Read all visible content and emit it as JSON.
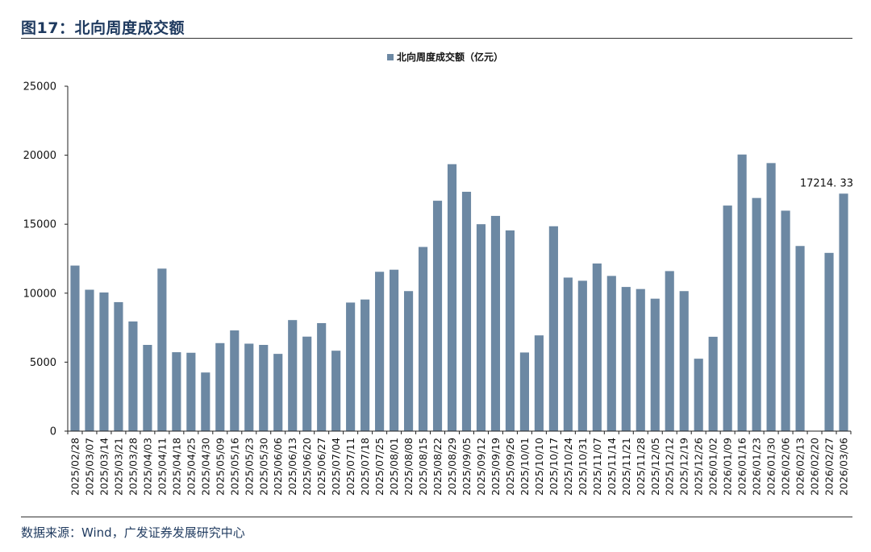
{
  "figure_title": "图17：北向周度成交额",
  "source": "数据来源：Wind，广发证券发展研究中心",
  "colors": {
    "bar": "#6c88a3",
    "axis": "#222222"
  },
  "chart_data": {
    "type": "bar",
    "title": "",
    "xlabel": "",
    "ylabel": "",
    "ylim": [
      0,
      25000
    ],
    "yticks": [
      0,
      5000,
      10000,
      15000,
      20000,
      25000
    ],
    "grid": false,
    "legend_position": "top-center",
    "categories": [
      "2025/02/28",
      "2025/03/07",
      "2025/03/14",
      "2025/03/21",
      "2025/03/28",
      "2025/04/03",
      "2025/04/11",
      "2025/04/18",
      "2025/04/25",
      "2025/04/30",
      "2025/05/09",
      "2025/05/16",
      "2025/05/23",
      "2025/05/30",
      "2025/06/06",
      "2025/06/13",
      "2025/06/20",
      "2025/06/27",
      "2025/07/04",
      "2025/07/11",
      "2025/07/18",
      "2025/07/25",
      "2025/08/01",
      "2025/08/08",
      "2025/08/15",
      "2025/08/22",
      "2025/08/29",
      "2025/09/05",
      "2025/09/12",
      "2025/09/19",
      "2025/09/26",
      "2025/10/01",
      "2025/10/10",
      "2025/10/17",
      "2025/10/24",
      "2025/10/31",
      "2025/11/07",
      "2025/11/14",
      "2025/11/21",
      "2025/11/28",
      "2025/12/05",
      "2025/12/12",
      "2025/12/19",
      "2025/12/26",
      "2026/01/02",
      "2026/01/09",
      "2026/01/16",
      "2026/01/23",
      "2026/01/30",
      "2026/02/06",
      "2026/02/13",
      "2026/02/20",
      "2026/02/27",
      "2026/03/06"
    ],
    "series": [
      {
        "name": "北向周度成交额（亿元）",
        "values": [
          12000,
          10250,
          10050,
          9350,
          7950,
          6250,
          11780,
          5720,
          5680,
          4250,
          6380,
          7300,
          6340,
          6250,
          5600,
          8050,
          6850,
          7830,
          5830,
          9320,
          9540,
          11550,
          11700,
          10150,
          13350,
          16700,
          19350,
          17350,
          15000,
          15600,
          14550,
          5700,
          6940,
          14850,
          11130,
          10900,
          12150,
          11250,
          10450,
          10300,
          9600,
          11600,
          10150,
          5250,
          6840,
          16350,
          20050,
          16900,
          19430,
          15980,
          13420,
          0,
          12920,
          17214.33
        ]
      }
    ],
    "data_labels": [
      {
        "category": "2026/03/06",
        "text": "17214. 33"
      }
    ]
  }
}
